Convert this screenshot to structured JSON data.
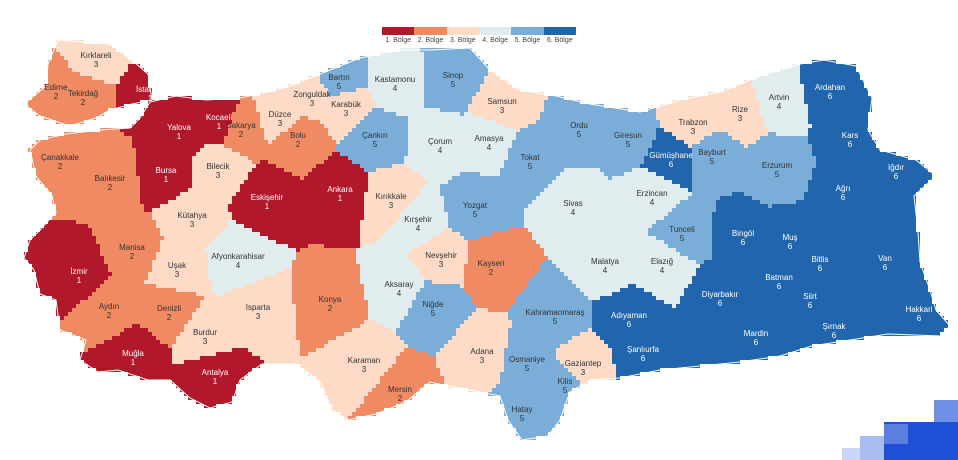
{
  "legend": {
    "items": [
      {
        "label": "1. Bölge",
        "color": "#b2182b"
      },
      {
        "label": "2. Bölge",
        "color": "#ef8a62"
      },
      {
        "label": "3. Bölge",
        "color": "#fddbc7"
      },
      {
        "label": "4. Bölge",
        "color": "#e1ecef"
      },
      {
        "label": "5. Bölge",
        "color": "#7aaed8"
      },
      {
        "label": "6. Bölge",
        "color": "#2166ac"
      }
    ]
  },
  "provinces": [
    {
      "name": "Kırklareli",
      "region": "3"
    },
    {
      "name": "Edirne",
      "region": "2"
    },
    {
      "name": "Tekirdağ",
      "region": "2"
    },
    {
      "name": "İstanbul",
      "region": "1"
    },
    {
      "name": "Kocaeli",
      "region": "1"
    },
    {
      "name": "Yalova",
      "region": "1"
    },
    {
      "name": "Sakarya",
      "region": "2"
    },
    {
      "name": "Düzce",
      "region": "3"
    },
    {
      "name": "Zonguldak",
      "region": "3"
    },
    {
      "name": "Bartın",
      "region": "5"
    },
    {
      "name": "Karabük",
      "region": "3"
    },
    {
      "name": "Kastamonu",
      "region": "4"
    },
    {
      "name": "Sinop",
      "region": "5"
    },
    {
      "name": "Samsun",
      "region": "3"
    },
    {
      "name": "Bolu",
      "region": "2"
    },
    {
      "name": "Çankırı",
      "region": "5"
    },
    {
      "name": "Çorum",
      "region": "4"
    },
    {
      "name": "Amasya",
      "region": "4"
    },
    {
      "name": "Ordu",
      "region": "5"
    },
    {
      "name": "Giresun",
      "region": "5"
    },
    {
      "name": "Trabzon",
      "region": "3"
    },
    {
      "name": "Rize",
      "region": "3"
    },
    {
      "name": "Artvin",
      "region": "4"
    },
    {
      "name": "Ardahan",
      "region": "6"
    },
    {
      "name": "Kars",
      "region": "6"
    },
    {
      "name": "Iğdır",
      "region": "6"
    },
    {
      "name": "Gümüşhane",
      "region": "6"
    },
    {
      "name": "Bayburt",
      "region": "5"
    },
    {
      "name": "Erzurum",
      "region": "5"
    },
    {
      "name": "Ağrı",
      "region": "6"
    },
    {
      "name": "Tokat",
      "region": "5"
    },
    {
      "name": "Çanakkale",
      "region": "2"
    },
    {
      "name": "Balıkesir",
      "region": "2"
    },
    {
      "name": "Bursa",
      "region": "1"
    },
    {
      "name": "Bilecik",
      "region": "3"
    },
    {
      "name": "Eskişehir",
      "region": "1"
    },
    {
      "name": "Ankara",
      "region": "1"
    },
    {
      "name": "Kırıkkale",
      "region": "3"
    },
    {
      "name": "Yozgat",
      "region": "5"
    },
    {
      "name": "Sivas",
      "region": "4"
    },
    {
      "name": "Erzincan",
      "region": "4"
    },
    {
      "name": "Kütahya",
      "region": "3"
    },
    {
      "name": "Kırşehir",
      "region": "4"
    },
    {
      "name": "Tunceli",
      "region": "5"
    },
    {
      "name": "Bingöl",
      "region": "6"
    },
    {
      "name": "Muş",
      "region": "6"
    },
    {
      "name": "Bitlis",
      "region": "6"
    },
    {
      "name": "Van",
      "region": "6"
    },
    {
      "name": "Manisa",
      "region": "2"
    },
    {
      "name": "Afyonkarahisar",
      "region": "4"
    },
    {
      "name": "Uşak",
      "region": "3"
    },
    {
      "name": "Nevşehir",
      "region": "3"
    },
    {
      "name": "Kayseri",
      "region": "2"
    },
    {
      "name": "Malatya",
      "region": "4"
    },
    {
      "name": "Elazığ",
      "region": "4"
    },
    {
      "name": "İzmir",
      "region": "1"
    },
    {
      "name": "Aksaray",
      "region": "4"
    },
    {
      "name": "Batman",
      "region": "6"
    },
    {
      "name": "Siirt",
      "region": "6"
    },
    {
      "name": "Aydın",
      "region": "2"
    },
    {
      "name": "Denizli",
      "region": "2"
    },
    {
      "name": "Isparta",
      "region": "3"
    },
    {
      "name": "Konya",
      "region": "2"
    },
    {
      "name": "Niğde",
      "region": "5"
    },
    {
      "name": "Kahramanmaraş",
      "region": "5"
    },
    {
      "name": "Adıyaman",
      "region": "6"
    },
    {
      "name": "Diyarbakır",
      "region": "6"
    },
    {
      "name": "Hakkari",
      "region": "6"
    },
    {
      "name": "Şırnak",
      "region": "6"
    },
    {
      "name": "Muğla",
      "region": "1"
    },
    {
      "name": "Burdur",
      "region": "3"
    },
    {
      "name": "Antalya",
      "region": "1"
    },
    {
      "name": "Karaman",
      "region": "3"
    },
    {
      "name": "Mersin",
      "region": "2"
    },
    {
      "name": "Adana",
      "region": "3"
    },
    {
      "name": "Osmaniye",
      "region": "5"
    },
    {
      "name": "Gaziantep",
      "region": "3"
    },
    {
      "name": "Kilis",
      "region": "5"
    },
    {
      "name": "Şanlıurfa",
      "region": "6"
    },
    {
      "name": "Mardin",
      "region": "6"
    },
    {
      "name": "Hatay",
      "region": "5"
    }
  ]
}
